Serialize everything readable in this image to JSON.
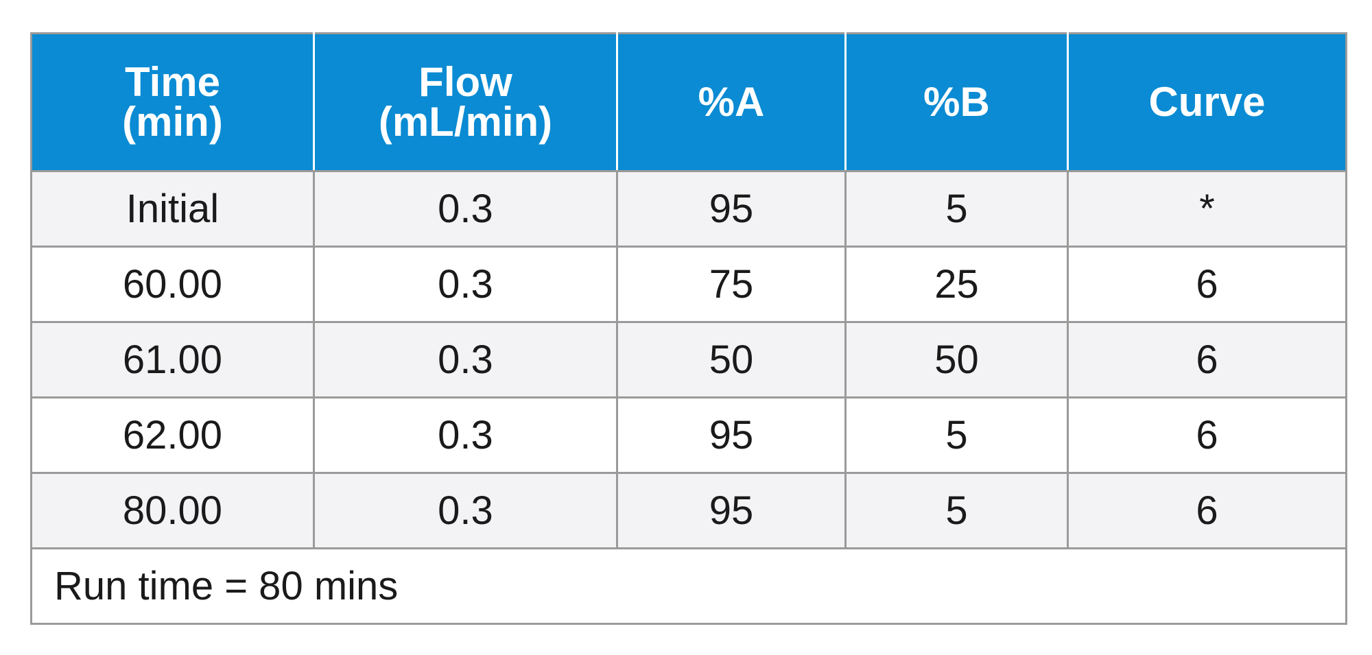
{
  "table": {
    "headers": [
      {
        "line1": "Time",
        "line2": "(min)"
      },
      {
        "line1": "Flow",
        "line2": "(mL/min)"
      },
      {
        "line1": "%A",
        "line2": ""
      },
      {
        "line1": "%B",
        "line2": ""
      },
      {
        "line1": "Curve",
        "line2": ""
      }
    ],
    "rows": [
      [
        "Initial",
        "0.3",
        "95",
        "5",
        "*"
      ],
      [
        "60.00",
        "0.3",
        "75",
        "25",
        "6"
      ],
      [
        "61.00",
        "0.3",
        "50",
        "50",
        "6"
      ],
      [
        "62.00",
        "0.3",
        "95",
        "5",
        "6"
      ],
      [
        "80.00",
        "0.3",
        "95",
        "5",
        "6"
      ]
    ],
    "footer": "Run time = 80 mins",
    "colors": {
      "header_bg": "#0a8bd3",
      "header_text": "#ffffff",
      "row_shade": "#f3f3f5",
      "row_plain": "#ffffff",
      "border": "#9a9a9a"
    }
  }
}
